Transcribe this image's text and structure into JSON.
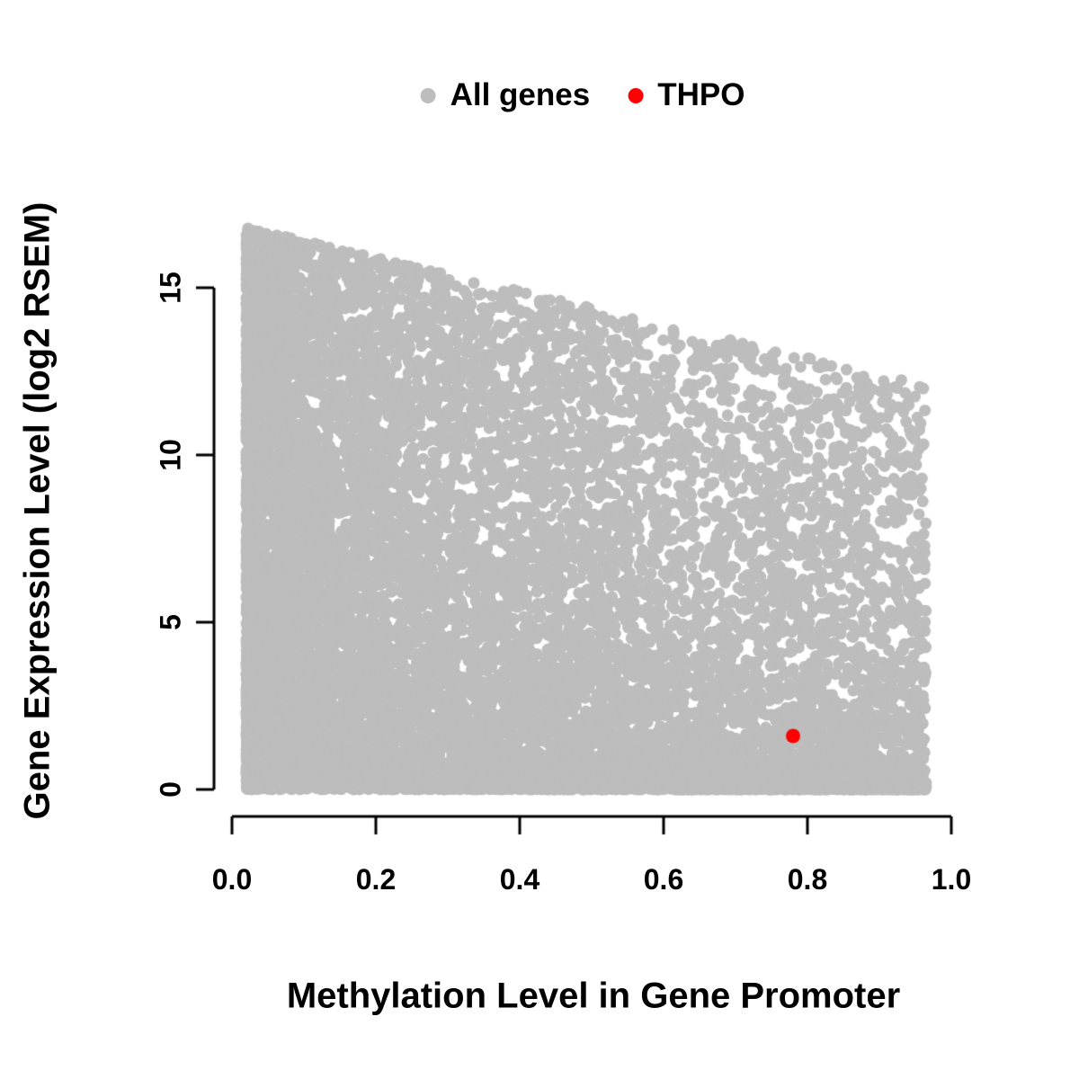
{
  "axes": {
    "x": {
      "tick_labels": [
        "0.0",
        "0.2",
        "0.4",
        "0.6",
        "0.8",
        "1.0"
      ],
      "tick_values": [
        0,
        0.2,
        0.4,
        0.6,
        0.8,
        1.0
      ]
    },
    "y": {
      "tick_labels": [
        "0",
        "5",
        "10",
        "15"
      ],
      "tick_values": [
        0,
        5,
        10,
        15
      ]
    }
  },
  "chart_data": {
    "type": "scatter",
    "title": "",
    "xlabel": "Methylation Level in Gene Promoter",
    "ylabel": "Gene Expression Level (log2 RSEM)",
    "xlim": [
      0,
      1
    ],
    "ylim": [
      0,
      17
    ],
    "grid": false,
    "legend_position": "top-center",
    "series": [
      {
        "name": "All genes",
        "color": "#bdbdbd",
        "marker": "circle",
        "marker_radius_px": 6.5,
        "point_count": 13000,
        "distribution": {
          "kind": "procedural",
          "seed": 42,
          "x_formula": "0.02 + 0.945 * u^1.7",
          "y_formula": "v^(1.2 + 1.5*x) * (16.9 - 5.0*x)",
          "x_range": [
            0.02,
            0.965
          ],
          "y_range": [
            0,
            16.9
          ],
          "note": "dense gray cloud; density highest at low methylation; upper expression envelope declines from ~16.8 at x=0 to ~12 at x=0.95; solid strip of points along y=0"
        }
      },
      {
        "name": "THPO",
        "color": "#ff0000",
        "marker": "circle",
        "marker_radius_px": 8,
        "points": [
          [
            0.78,
            1.6
          ]
        ]
      }
    ]
  }
}
